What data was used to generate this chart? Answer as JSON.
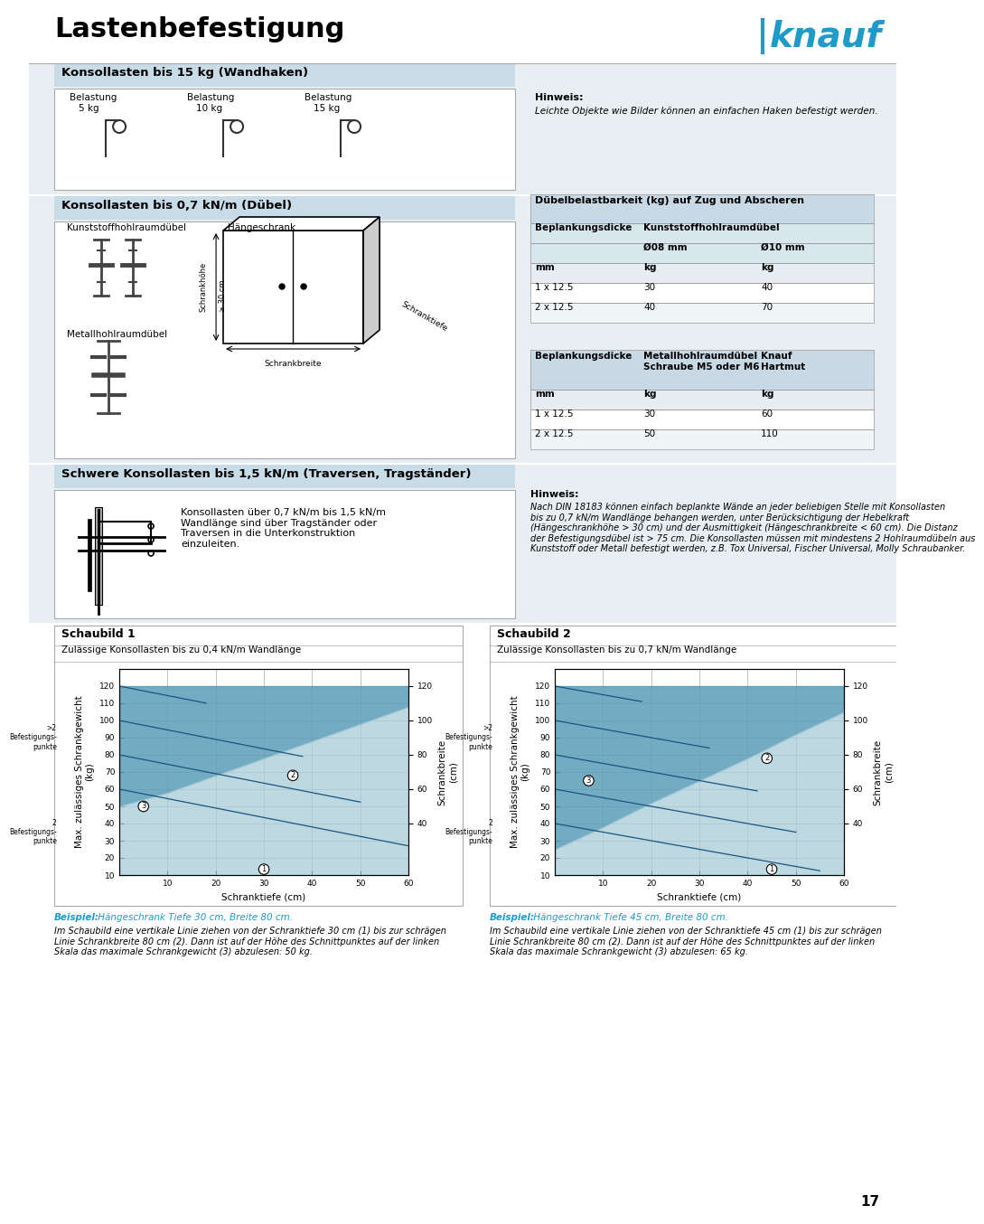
{
  "title": "Lastenbefestigung",
  "bg_color": "#ffffff",
  "light_blue": "#c8dce8",
  "knauf_blue": "#1e9bc8",
  "table_header_bg": "#c8d8e4",
  "gray_bg": "#e8eef2",
  "section1_title": "Konsollasten bis 15 kg (Wandhaken)",
  "section1_hinweis": "Hinweis:",
  "section1_hinweis_text": "Leichte Objekte wie Bilder können an einfachen Haken befestigt werden.",
  "section1_loads": [
    "Belastung\n5 kg",
    "Belastung\n10 kg",
    "Belastung\n15 kg"
  ],
  "section2_title": "Konsollasten bis 0,7 kN/m (Dübel)",
  "section2_label_kunst": "Kunststoffhohlraumdübel",
  "section2_label_haenge": "Hängeschrank",
  "section2_label_metall": "Metallhohlraumdübel",
  "table1_title": "Dübelbelastbarkeit (kg) auf Zug und Abscheren",
  "table1_header1": "Beplankungsdicke",
  "table1_header2": "Kunststoffhohlraumdübel",
  "table1_col1": "Ø08 mm",
  "table1_col2": "Ø10 mm",
  "table1_unit_row": [
    "mm",
    "kg",
    "kg"
  ],
  "table1_rows": [
    [
      "1 x 12.5",
      "30",
      "40"
    ],
    [
      "2 x 12.5",
      "40",
      "70"
    ]
  ],
  "table2_header1": "Beplankungsdicke",
  "table2_header2": "Metallhohlraumdübel\nSchraube M5 oder M6",
  "table2_header3": "Knauf\nHartmut",
  "table2_unit_row": [
    "mm",
    "kg",
    "kg"
  ],
  "table2_rows": [
    [
      "1 x 12.5",
      "30",
      "60"
    ],
    [
      "2 x 12.5",
      "50",
      "110"
    ]
  ],
  "section3_title": "Schwere Konsollasten bis 1,5 kN/m (Traversen, Tragständer)",
  "section3_text": "Konsollasten über 0,7 kN/m bis 1,5 kN/m\nWandlänge sind über Tragständer oder\nTraversen in die Unterkonstruktion\neinzuleiten.",
  "section3_hinweis": "Hinweis:",
  "section3_hinweis_text": "Nach DIN 18183 können einfach beplankte Wände an jeder beliebigen Stelle mit Konsollasten\nbis zu 0,7 kN/m Wandlänge behangen werden, unter Berücksichtigung der Hebelkraft\n(Hängeschrankhöhe > 30 cm) und der Ausmittigkeit (Hängeschrankbreite < 60 cm). Die Distanz\nder Befestigungsdübel ist > 75 cm. Die Konsollasten müssen mit mindestens 2 Hohlraumdübeln aus\nKunststoff oder Metall befestigt werden, z.B. Tox Universal, Fischer Universal, Molly Schraubanker.",
  "schaubild1_title": "Schaubild 1",
  "schaubild1_subtitle": "Zulässige Konsollasten bis zu 0,4 kN/m Wandlänge",
  "schaubild1_xlabel": "Schranktiefe (cm)",
  "schaubild1_ylabel": "Max. zulässiges Schrankgewicht\n(kg)",
  "schaubild1_ylabel2": "Schrankbreite\n(cm)",
  "schaubild1_yticks": [
    10,
    20,
    30,
    40,
    50,
    60,
    70,
    80,
    90,
    100,
    110,
    120
  ],
  "schaubild1_xticks": [
    10,
    20,
    30,
    40,
    50,
    60
  ],
  "schaubild1_yticks2": [
    40,
    60,
    80,
    100,
    120
  ],
  "schaubild2_title": "Schaubild 2",
  "schaubild2_subtitle": "Zulässige Konsollasten bis zu 0,7 kN/m Wandlänge",
  "schaubild2_xlabel": "Schranktiefe (cm)",
  "schaubild2_ylabel": "Max. zulässiges Schrankgewicht\n(kg)",
  "schaubild2_ylabel2": "Schrankbreite\n(cm)",
  "schaubild2_yticks": [
    10,
    20,
    30,
    40,
    50,
    60,
    70,
    80,
    90,
    100,
    110,
    120
  ],
  "schaubild2_xticks": [
    10,
    20,
    30,
    40,
    50,
    60
  ],
  "schaubild2_yticks2": [
    40,
    60,
    80,
    100,
    120
  ],
  "beispiel1_bold": "Beispiel:",
  "beispiel1_text": " Hängeschrank Tiefe 30 cm, Breite 80 cm.",
  "beispiel1_detail": "Im Schaubild eine vertikale Linie ziehen von der Schranktiefe 30 cm (1) bis zur schrägen\nLinie Schrankbreite 80 cm (2). Dann ist auf der Höhe des Schnittpunktes auf der linken\nSkala das maximale Schrankgewicht (3) abzulesen: 50 kg.",
  "beispiel2_bold": "Beispiel:",
  "beispiel2_text": " Hängeschrank Tiefe 45 cm, Breite 80 cm.",
  "beispiel2_detail": "Im Schaubild eine vertikale Linie ziehen von der Schranktiefe 45 cm (1) bis zur schrägen\nLinie Schrankbreite 80 cm (2). Dann ist auf der Höhe des Schnittpunktes auf der linken\nSkala das maximale Schrankgewicht (3) abzulesen: 65 kg.",
  "page_number": "17"
}
